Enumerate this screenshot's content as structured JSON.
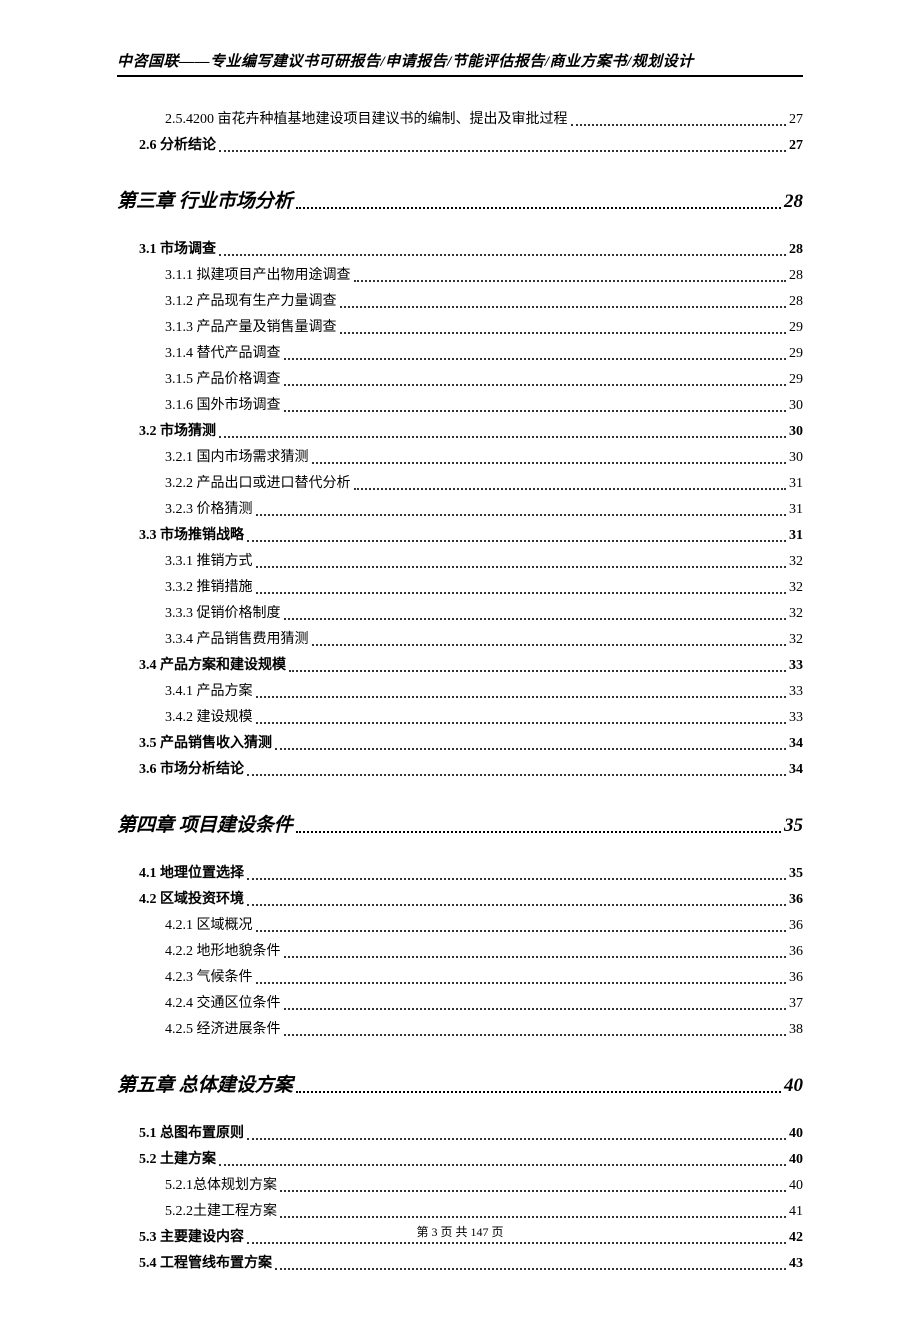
{
  "header": {
    "text": "中咨国联——专业编写建议书可研报告/申请报告/节能评估报告/商业方案书/规划设计"
  },
  "footer": {
    "text": "第 3 页 共 147 页"
  },
  "toc": [
    {
      "level": 3,
      "label": "2.5.4200 亩花卉种植基地建设项目建议书的编制、提出及审批过程",
      "page": "27"
    },
    {
      "level": 2,
      "label": "2.6 分析结论",
      "page": "27"
    },
    {
      "level": 1,
      "label": "第三章  行业市场分析",
      "page": "28"
    },
    {
      "level": 2,
      "label": "3.1 市场调查",
      "page": "28"
    },
    {
      "level": 3,
      "label": "3.1.1 拟建项目产出物用途调查",
      "page": "28"
    },
    {
      "level": 3,
      "label": "3.1.2 产品现有生产力量调查",
      "page": "28"
    },
    {
      "level": 3,
      "label": "3.1.3 产品产量及销售量调查",
      "page": "29"
    },
    {
      "level": 3,
      "label": "3.1.4 替代产品调查",
      "page": "29"
    },
    {
      "level": 3,
      "label": "3.1.5 产品价格调查",
      "page": "29"
    },
    {
      "level": 3,
      "label": "3.1.6 国外市场调查",
      "page": "30"
    },
    {
      "level": 2,
      "label": "3.2 市场猜测",
      "page": "30"
    },
    {
      "level": 3,
      "label": "3.2.1 国内市场需求猜测",
      "page": "30"
    },
    {
      "level": 3,
      "label": "3.2.2 产品出口或进口替代分析",
      "page": "31"
    },
    {
      "level": 3,
      "label": "3.2.3 价格猜测",
      "page": "31"
    },
    {
      "level": 2,
      "label": "3.3 市场推销战略",
      "page": "31"
    },
    {
      "level": 3,
      "label": "3.3.1 推销方式",
      "page": "32"
    },
    {
      "level": 3,
      "label": "3.3.2 推销措施",
      "page": "32"
    },
    {
      "level": 3,
      "label": "3.3.3 促销价格制度",
      "page": "32"
    },
    {
      "level": 3,
      "label": "3.3.4 产品销售费用猜测",
      "page": "32"
    },
    {
      "level": 2,
      "label": "3.4 产品方案和建设规模",
      "page": "33"
    },
    {
      "level": 3,
      "label": "3.4.1 产品方案",
      "page": "33"
    },
    {
      "level": 3,
      "label": "3.4.2 建设规模",
      "page": "33"
    },
    {
      "level": 2,
      "label": "3.5 产品销售收入猜测",
      "page": "34"
    },
    {
      "level": 2,
      "label": "3.6 市场分析结论",
      "page": "34"
    },
    {
      "level": 1,
      "label": "第四章  项目建设条件",
      "page": "35"
    },
    {
      "level": 2,
      "label": "4.1 地理位置选择",
      "page": "35"
    },
    {
      "level": 2,
      "label": "4.2 区域投资环境",
      "page": "36"
    },
    {
      "level": 3,
      "label": "4.2.1 区域概况",
      "page": "36"
    },
    {
      "level": 3,
      "label": "4.2.2 地形地貌条件",
      "page": "36"
    },
    {
      "level": 3,
      "label": "4.2.3 气候条件",
      "page": "36"
    },
    {
      "level": 3,
      "label": "4.2.4 交通区位条件",
      "page": "37"
    },
    {
      "level": 3,
      "label": "4.2.5 经济进展条件",
      "page": "38"
    },
    {
      "level": 1,
      "label": "第五章  总体建设方案",
      "page": "40"
    },
    {
      "level": 2,
      "label": "5.1 总图布置原则",
      "page": "40"
    },
    {
      "level": 2,
      "label": "5.2 土建方案",
      "page": "40"
    },
    {
      "level": 3,
      "label": "5.2.1总体规划方案",
      "page": "40"
    },
    {
      "level": 3,
      "label": "5.2.2土建工程方案",
      "page": "41"
    },
    {
      "level": 2,
      "label": "5.3 主要建设内容",
      "page": "42"
    },
    {
      "level": 2,
      "label": "5.4 工程管线布置方案",
      "page": "43"
    }
  ]
}
